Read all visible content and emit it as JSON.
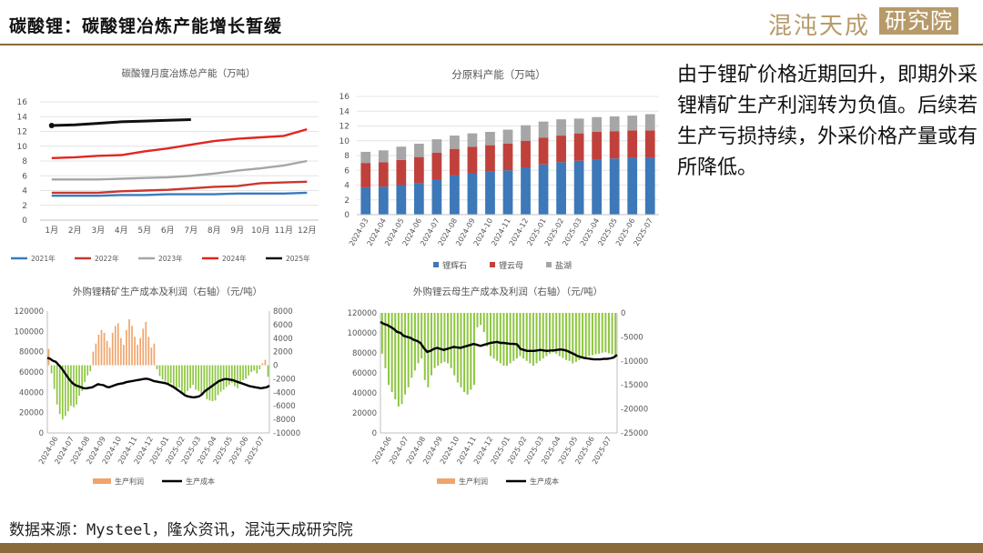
{
  "header": {
    "title": "碳酸锂：碳酸锂冶炼产能增长暂缓",
    "logo_text": "混沌天成",
    "logo_box_text": "研究院"
  },
  "side_text": "由于锂矿价格近期回升，即期外采锂精矿生产利润转为负值。后续若生产亏损持续，外采价格产量或有所降低。",
  "source": "数据来源：Mysteel，隆众资讯，混沌天成研究院",
  "colors": {
    "brand": "#8a6a3b",
    "logo": "#b79a6a"
  },
  "chart_data": [
    {
      "type": "line",
      "title": "碳酸锂月度冶炼总产能（万吨）",
      "categories": [
        "1月",
        "2月",
        "3月",
        "4月",
        "5月",
        "6月",
        "7月",
        "8月",
        "9月",
        "10月",
        "11月",
        "12月"
      ],
      "ylim": [
        0,
        16
      ],
      "yticks": [
        0,
        2,
        4,
        6,
        8,
        10,
        12,
        14,
        16
      ],
      "legend_position": "bottom",
      "series": [
        {
          "name": "2021年",
          "color": "#3a7bbf",
          "values": [
            3.3,
            3.3,
            3.3,
            3.4,
            3.4,
            3.5,
            3.5,
            3.5,
            3.6,
            3.6,
            3.6,
            3.7
          ]
        },
        {
          "name": "2022年",
          "color": "#c9372f",
          "values": [
            3.7,
            3.7,
            3.7,
            3.9,
            4.0,
            4.1,
            4.3,
            4.5,
            4.6,
            5.0,
            5.1,
            5.2
          ]
        },
        {
          "name": "2023年",
          "color": "#a6a6a6",
          "values": [
            5.5,
            5.5,
            5.5,
            5.6,
            5.7,
            5.8,
            6.0,
            6.3,
            6.7,
            7.0,
            7.4,
            8.0
          ]
        },
        {
          "name": "2024年",
          "color": "#e0261f",
          "values": [
            8.4,
            8.5,
            8.7,
            8.8,
            9.3,
            9.7,
            10.2,
            10.7,
            11.0,
            11.2,
            11.4,
            12.3
          ]
        },
        {
          "name": "2025年",
          "color": "#111111",
          "values": [
            12.8,
            12.9,
            13.1,
            13.3,
            13.4,
            13.5,
            13.6,
            null,
            null,
            null,
            null,
            null
          ]
        }
      ]
    },
    {
      "type": "bar",
      "stacked": true,
      "title": "分原料产能（万吨）",
      "categories": [
        "2024-03",
        "2024-04",
        "2024-05",
        "2024-06",
        "2024-07",
        "2024-08",
        "2024-09",
        "2024-10",
        "2024-11",
        "2024-12",
        "2025-01",
        "2025-02",
        "2025-03",
        "2025-04",
        "2025-05",
        "2025-06",
        "2025-07"
      ],
      "ylim": [
        0,
        16
      ],
      "yticks": [
        0,
        2,
        4,
        6,
        8,
        10,
        12,
        14,
        16
      ],
      "legend_position": "bottom",
      "series": [
        {
          "name": "锂辉石",
          "color": "#3d78b8",
          "values": [
            3.7,
            3.8,
            4.0,
            4.3,
            4.8,
            5.3,
            5.6,
            5.8,
            6.0,
            6.4,
            6.8,
            7.1,
            7.3,
            7.5,
            7.6,
            7.7,
            7.7
          ]
        },
        {
          "name": "锂云母",
          "color": "#c0413c",
          "values": [
            3.3,
            3.3,
            3.4,
            3.5,
            3.6,
            3.6,
            3.6,
            3.6,
            3.6,
            3.6,
            3.6,
            3.6,
            3.7,
            3.7,
            3.7,
            3.7,
            3.7
          ]
        },
        {
          "name": "盐湖",
          "color": "#a6a6a6",
          "values": [
            1.5,
            1.6,
            1.8,
            1.8,
            1.8,
            1.8,
            1.8,
            1.8,
            1.9,
            2.1,
            2.2,
            2.2,
            2.0,
            2.0,
            2.0,
            2.0,
            2.2
          ]
        }
      ]
    },
    {
      "type": "bar+line",
      "title": "外购锂精矿生产成本及利润（右轴）（元/吨）",
      "x_tick_labels": [
        "2024-06",
        "2024-07",
        "2024-08",
        "2024-09",
        "2024-10",
        "2024-11",
        "2024-12",
        "2025-01",
        "2025-02",
        "2025-03",
        "2025-04",
        "2025-05",
        "2025-06",
        "2025-07"
      ],
      "ylim_left": [
        0,
        120000
      ],
      "yticks_left": [
        0,
        20000,
        40000,
        60000,
        80000,
        100000,
        120000
      ],
      "ylim_right": [
        -10000,
        8000
      ],
      "yticks_right": [
        -10000,
        -8000,
        -6000,
        -4000,
        -2000,
        0,
        2000,
        4000,
        6000,
        8000
      ],
      "legend_position": "bottom",
      "series": [
        {
          "name": "生产利润",
          "axis": "right",
          "color_pos": "#f0a46a",
          "color_neg": "#8dc63f",
          "values": [
            2400,
            -1200,
            -3500,
            -5800,
            -7200,
            -8000,
            -7500,
            -6800,
            -6000,
            -6200,
            -5800,
            -4500,
            -3800,
            -2500,
            -1500,
            -900,
            2000,
            3200,
            4500,
            5200,
            4800,
            3600,
            2600,
            4800,
            5800,
            6200,
            4000,
            3000,
            5200,
            6800,
            5800,
            4200,
            3000,
            4000,
            5400,
            6400,
            4200,
            2600,
            3200,
            -600,
            -1600,
            -2100,
            -2400,
            -2800,
            -2600,
            -3100,
            -3600,
            -3300,
            -3900,
            -4200,
            -3800,
            -3400,
            -2900,
            -3600,
            -3800,
            -4300,
            -4000,
            -5000,
            -5200,
            -5300,
            -5200,
            -4400,
            -3900,
            -3600,
            -3200,
            -2900,
            -2600,
            -3100,
            -3400,
            -2800,
            -2200,
            -2000,
            -1500,
            -1000,
            -800,
            -1200,
            -600,
            300,
            800,
            -1700
          ]
        },
        {
          "name": "生产成本",
          "axis": "left",
          "color": "#000000",
          "values": [
            74000,
            73000,
            71000,
            70000,
            67000,
            64000,
            60000,
            56000,
            52000,
            49000,
            47000,
            46000,
            45000,
            44000,
            44000,
            44500,
            45000,
            46500,
            48000,
            47500,
            47000,
            45500,
            45000,
            46000,
            47000,
            48000,
            48500,
            49000,
            50000,
            50500,
            51000,
            51500,
            52000,
            52500,
            53000,
            53500,
            53000,
            52000,
            51000,
            50500,
            50000,
            49500,
            49000,
            48000,
            46500,
            45000,
            43000,
            41000,
            39000,
            37000,
            36000,
            35500,
            35000,
            35500,
            36000,
            38000,
            41000,
            43000,
            45000,
            47000,
            49000,
            51000,
            52000,
            53000,
            53000,
            52500,
            52000,
            51000,
            50000,
            49000,
            48000,
            47000,
            46000,
            45500,
            45000,
            44500,
            44000,
            44500,
            45000,
            46500
          ]
        }
      ]
    },
    {
      "type": "bar+line",
      "title": "外购锂云母生产成本及利润（右轴）（元/吨）",
      "x_tick_labels": [
        "2024-06",
        "2024-07",
        "2024-08",
        "2024-09",
        "2024-10",
        "2024-11",
        "2024-12",
        "2025-01",
        "2025-02",
        "2025-03",
        "2025-04",
        "2025-05",
        "2025-06",
        "2025-07"
      ],
      "ylim_left": [
        0,
        120000
      ],
      "yticks_left": [
        0,
        20000,
        40000,
        60000,
        80000,
        100000,
        120000
      ],
      "ylim_right": [
        -25000,
        0
      ],
      "yticks_right": [
        -25000,
        -20000,
        -15000,
        -10000,
        -5000,
        0
      ],
      "legend_position": "bottom",
      "series": [
        {
          "name": "生产利润",
          "axis": "right",
          "color_pos": "#f0a46a",
          "color_neg": "#8dc63f",
          "values": [
            -8500,
            -11500,
            -15000,
            -16500,
            -18000,
            -19500,
            -19000,
            -17000,
            -15500,
            -13500,
            -12000,
            -10500,
            -9500,
            -14000,
            -15500,
            -13000,
            -11500,
            -11000,
            -10500,
            -10200,
            -10500,
            -11500,
            -13000,
            -14500,
            -15500,
            -16500,
            -17000,
            -16000,
            -15000,
            -3000,
            -2500,
            -4000,
            -7000,
            -9000,
            -9500,
            -10000,
            -10500,
            -11000,
            -11000,
            -10500,
            -10000,
            -9500,
            -9000,
            -9500,
            -10000,
            -10500,
            -11000,
            -10500,
            -10000,
            -9500,
            -9000,
            -8500,
            -8200,
            -8500,
            -9000,
            -9400,
            -9800,
            -10000,
            -10500,
            -10200,
            -9800,
            -9500,
            -9200,
            -9000,
            -8800,
            -8600,
            -8500,
            -8300,
            -8200,
            -8400,
            -8600,
            -8800
          ]
        },
        {
          "name": "生产成本",
          "axis": "left",
          "color": "#000000",
          "values": [
            111000,
            109000,
            108000,
            106000,
            104000,
            101000,
            100000,
            97000,
            96000,
            95000,
            93000,
            92000,
            90000,
            85000,
            81000,
            82000,
            84000,
            85000,
            84000,
            83000,
            84000,
            85000,
            86000,
            85500,
            85000,
            86000,
            87000,
            88000,
            89000,
            88000,
            87000,
            88000,
            89000,
            90000,
            90500,
            91000,
            90000,
            90000,
            89500,
            89000,
            89000,
            88500,
            84000,
            83000,
            82000,
            82000,
            82000,
            82500,
            83000,
            82500,
            82000,
            82500,
            82500,
            83000,
            83500,
            83000,
            82000,
            80500,
            79000,
            77000,
            76000,
            75000,
            74500,
            74000,
            73500,
            73500,
            73500,
            74000,
            74000,
            74500,
            75500,
            78000
          ]
        }
      ]
    }
  ]
}
